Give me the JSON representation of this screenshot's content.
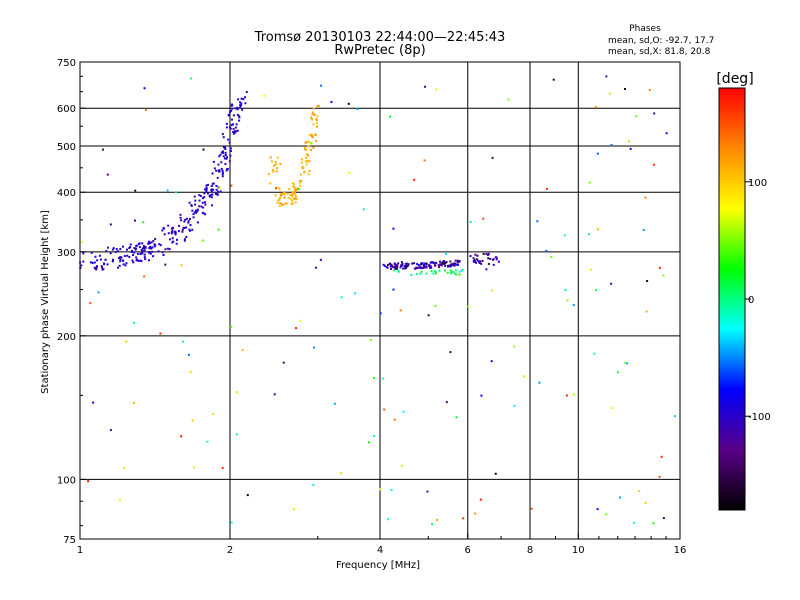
{
  "chart_data": {
    "type": "scatter",
    "title": "Tromsø 20130103 22:44:00—22:45:43",
    "subtitle": "RwPretec (8p)",
    "xlabel": "Frequency [MHz]",
    "ylabel": "Stationary phase Virtual Height [km]",
    "x_scale": "log",
    "y_scale": "log",
    "xlim": [
      1,
      16
    ],
    "ylim": [
      75,
      750
    ],
    "x_ticks": [
      1,
      2,
      4,
      6,
      8,
      10,
      16
    ],
    "x_tick_labels": [
      "1",
      "2",
      "4",
      "6",
      "8",
      "10",
      "16"
    ],
    "y_ticks": [
      75,
      100,
      200,
      300,
      400,
      500,
      600,
      750
    ],
    "y_tick_labels": [
      "75",
      "100",
      "200",
      "300",
      "400",
      "500",
      "600",
      "750"
    ],
    "grid": true,
    "grid_x": [
      2,
      4,
      6,
      8,
      10
    ],
    "grid_y": [
      100,
      200,
      300,
      400,
      500,
      600
    ],
    "stats": {
      "heading": "Phases",
      "line_o": "mean, sd,O: -92.7, 17.7",
      "line_x": "mean, sd,X:  81.8, 20.8"
    },
    "colorbar": {
      "label": "[deg]",
      "range": [
        -180,
        180
      ],
      "ticks": [
        100,
        0,
        -100
      ],
      "tick_labels": [
        "100",
        "0",
        "-100"
      ],
      "stops": [
        "#000000",
        "#5a0088",
        "#0000ff",
        "#00ffff",
        "#00ff00",
        "#ffff00",
        "#ff8800",
        "#ff0000"
      ]
    },
    "clusters": [
      {
        "type": "curve",
        "pts": [
          [
            1.0,
            285
          ],
          [
            1.1,
            290
          ],
          [
            1.2,
            292
          ],
          [
            1.3,
            296
          ],
          [
            1.35,
            300
          ],
          [
            1.4,
            305
          ],
          [
            1.5,
            318
          ],
          [
            1.6,
            335
          ],
          [
            1.7,
            360
          ],
          [
            1.8,
            390
          ],
          [
            1.9,
            430
          ],
          [
            1.95,
            470
          ],
          [
            2.0,
            520
          ],
          [
            2.05,
            580
          ],
          [
            2.1,
            630
          ]
        ],
        "n": 320,
        "jx": 0.035,
        "jy": 0.05,
        "phase": [
          -115,
          -85
        ]
      },
      {
        "type": "curve",
        "pts": [
          [
            2.45,
            400
          ],
          [
            2.55,
            385
          ],
          [
            2.65,
            390
          ],
          [
            2.75,
            410
          ],
          [
            2.85,
            460
          ],
          [
            2.92,
            520
          ],
          [
            2.98,
            600
          ]
        ],
        "n": 110,
        "jx": 0.02,
        "jy": 0.04,
        "phase": [
          100,
          125
        ]
      },
      {
        "type": "curve",
        "pts": [
          [
            2.4,
            420
          ],
          [
            2.45,
            460
          ],
          [
            2.5,
            480
          ]
        ],
        "n": 14,
        "jx": 0.02,
        "jy": 0.04,
        "phase": [
          105,
          120
        ]
      },
      {
        "type": "curve",
        "pts": [
          [
            4.1,
            280
          ],
          [
            4.6,
            280
          ],
          [
            5.2,
            282
          ],
          [
            5.8,
            285
          ]
        ],
        "n": 130,
        "jx": 0.01,
        "jy": 0.014,
        "phase": [
          -160,
          -80
        ]
      },
      {
        "type": "curve",
        "pts": [
          [
            6.1,
            285
          ],
          [
            6.5,
            290
          ],
          [
            6.9,
            288
          ]
        ],
        "n": 30,
        "jx": 0.02,
        "jy": 0.03,
        "phase": [
          -160,
          -90
        ]
      },
      {
        "type": "curve",
        "pts": [
          [
            4.2,
            272
          ],
          [
            5.0,
            270
          ],
          [
            5.9,
            272
          ]
        ],
        "n": 30,
        "jx": 0.01,
        "jy": 0.012,
        "phase": [
          -20,
          40
        ]
      },
      {
        "type": "random",
        "xr": [
          1,
          16
        ],
        "yr": [
          80,
          700
        ],
        "n": 170,
        "phase": [
          -180,
          180
        ]
      }
    ]
  }
}
